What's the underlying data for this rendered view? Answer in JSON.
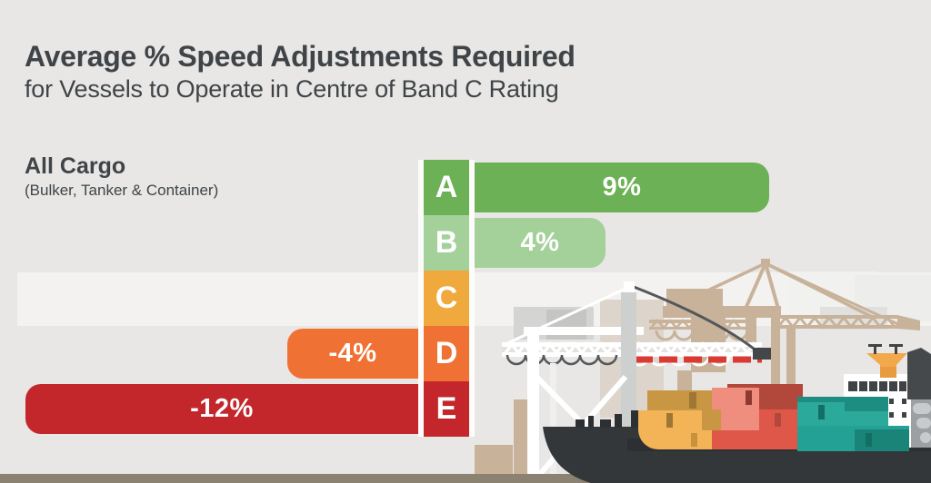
{
  "title": "Average % Speed Adjustments Required",
  "subtitle": "for Vessels to Operate in Centre of Band C Rating",
  "category": {
    "label": "All Cargo",
    "sublabel": "(Bulker, Tanker & Container)"
  },
  "chart_data": {
    "type": "bar",
    "orientation": "horizontal",
    "diverging": true,
    "title": "Average % Speed Adjustments Required",
    "subtitle": "for Vessels to Operate in Centre of Band C Rating",
    "categories": [
      "A",
      "B",
      "C",
      "D",
      "E"
    ],
    "values": [
      9,
      4,
      0,
      -4,
      -12
    ],
    "value_labels": [
      "9%",
      "4%",
      "",
      "-4%",
      "-12%"
    ],
    "band_colors": [
      "#6cb155",
      "#a4d19a",
      "#f0a93c",
      "#ef7234",
      "#c3272c"
    ],
    "highlight_band": "C",
    "xlim": [
      -12,
      9
    ],
    "legend": "none",
    "grid": "off"
  },
  "colors": {
    "background": "#e8e7e5",
    "band_c_strip": "#f3f2f1",
    "heading_text": "#3f4448",
    "bar_value_text": "#ffffff",
    "quay": "#8b8272"
  },
  "illustration": {
    "name": "container-ship-port-scene",
    "elements": [
      "container-ship",
      "shipping-containers",
      "white-gantry-crane",
      "tan-gantry-crane",
      "port-buildings",
      "quay-edge"
    ],
    "palette": {
      "ship_hull": "#33373a",
      "crane_tan": "#c8b299",
      "crane_white": "#ffffff",
      "containers_amber": "#f2b457",
      "containers_red": "#de5749",
      "containers_teal": "#2ba99b",
      "funnel_yellow": "#f2a94b",
      "superstructure_white": "#ffffff",
      "dashed_line_red": "#d93a31"
    }
  }
}
